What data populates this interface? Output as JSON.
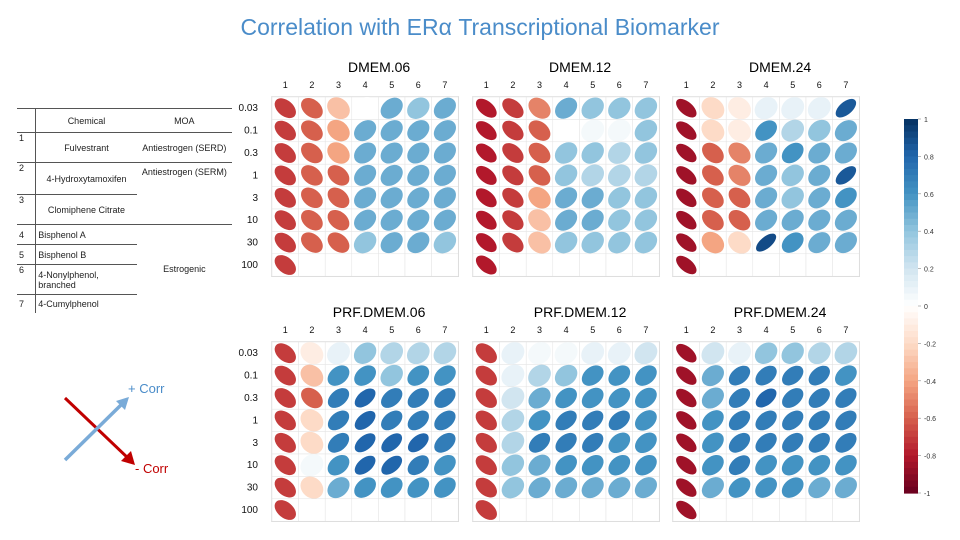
{
  "title": "Correlation with ERα Transcriptional Biomarker",
  "table": {
    "headers": {
      "chemical": "Chemical",
      "moa": "MOA"
    },
    "rows": [
      {
        "num": "1",
        "chemical": "Fulvestrant"
      },
      {
        "num": "2",
        "chemical": "4-Hydroxytamoxifen"
      },
      {
        "num": "3",
        "chemical": "Clomiphene Citrate"
      },
      {
        "num": "4",
        "chemical": "Bisphenol A"
      },
      {
        "num": "5",
        "chemical": "Bisphenol B"
      },
      {
        "num": "6",
        "chemical": "4-Nonylphenol, branched"
      },
      {
        "num": "7",
        "chemical": "4-Cumylphenol"
      }
    ],
    "moa_groups": [
      "Antiestrogen (SERD)",
      "Antiestrogen (SERM)",
      "Estrogenic"
    ]
  },
  "legend": {
    "positive": "+ Corr",
    "negative": "- Corr"
  },
  "colors": {
    "positive": "#4a8cc9",
    "negative": "#c00000",
    "title": "#4a8cc9"
  },
  "chart_data": {
    "type": "heatmap",
    "x_tick_labels": [
      "1",
      "2",
      "3",
      "4",
      "5",
      "6",
      "7"
    ],
    "y_tick_labels": [
      "0.03",
      "0.1",
      "0.3",
      "1",
      "3",
      "10",
      "30",
      "100"
    ],
    "colorbar": {
      "ticks": [
        "1",
        "0.8",
        "0.6",
        "0.4",
        "0.2",
        "0",
        "-0.2",
        "-0.4",
        "-0.6",
        "-0.8",
        "-1"
      ],
      "range": [
        -1,
        1
      ]
    },
    "panels": [
      {
        "title": "DMEM.06",
        "values": [
          [
            -0.7,
            -0.6,
            -0.3,
            0.0,
            0.5,
            0.4,
            0.5
          ],
          [
            -0.7,
            -0.6,
            -0.4,
            0.5,
            0.5,
            0.5,
            0.5
          ],
          [
            -0.7,
            -0.6,
            -0.4,
            0.5,
            0.5,
            0.5,
            0.5
          ],
          [
            -0.7,
            -0.6,
            -0.6,
            0.5,
            0.5,
            0.5,
            0.5
          ],
          [
            -0.7,
            -0.6,
            -0.6,
            0.5,
            0.5,
            0.5,
            0.5
          ],
          [
            -0.7,
            -0.6,
            -0.6,
            0.5,
            0.5,
            0.5,
            0.5
          ],
          [
            -0.7,
            -0.6,
            -0.6,
            0.4,
            0.5,
            0.5,
            0.4
          ],
          [
            -0.7,
            0,
            0,
            0,
            0,
            0,
            0
          ]
        ]
      },
      {
        "title": "DMEM.12",
        "values": [
          [
            -0.8,
            -0.7,
            -0.5,
            0.5,
            0.4,
            0.4,
            0.4
          ],
          [
            -0.8,
            -0.7,
            -0.6,
            0.0,
            0.05,
            0.05,
            0.4
          ],
          [
            -0.8,
            -0.7,
            -0.6,
            0.4,
            0.4,
            0.3,
            0.4
          ],
          [
            -0.8,
            -0.7,
            -0.6,
            0.4,
            0.3,
            0.3,
            0.3
          ],
          [
            -0.8,
            -0.7,
            -0.4,
            0.5,
            0.5,
            0.4,
            0.4
          ],
          [
            -0.8,
            -0.7,
            -0.3,
            0.5,
            0.5,
            0.4,
            0.4
          ],
          [
            -0.8,
            -0.7,
            -0.3,
            0.4,
            0.4,
            0.4,
            0.4
          ],
          [
            -0.8,
            0,
            0,
            0,
            0,
            0,
            0
          ]
        ]
      },
      {
        "title": "DMEM.24",
        "values": [
          [
            -0.85,
            -0.2,
            -0.1,
            0.1,
            0.1,
            0.1,
            0.85
          ],
          [
            -0.85,
            -0.2,
            -0.1,
            0.6,
            0.3,
            0.4,
            0.5
          ],
          [
            -0.85,
            -0.6,
            -0.5,
            0.5,
            0.6,
            0.5,
            0.5
          ],
          [
            -0.85,
            -0.6,
            -0.5,
            0.5,
            0.4,
            0.5,
            0.85
          ],
          [
            -0.85,
            -0.6,
            -0.6,
            0.5,
            0.4,
            0.5,
            0.6
          ],
          [
            -0.85,
            -0.6,
            -0.6,
            0.5,
            0.5,
            0.5,
            0.5
          ],
          [
            -0.85,
            -0.4,
            -0.2,
            0.9,
            0.6,
            0.5,
            0.5
          ],
          [
            -0.85,
            0,
            0,
            0,
            0,
            0,
            0
          ]
        ]
      },
      {
        "title": "PRF.DMEM.06",
        "values": [
          [
            -0.7,
            -0.1,
            0.1,
            0.4,
            0.3,
            0.3,
            0.3
          ],
          [
            -0.7,
            -0.3,
            0.6,
            0.6,
            0.4,
            0.6,
            0.6
          ],
          [
            -0.7,
            -0.6,
            0.7,
            0.8,
            0.7,
            0.7,
            0.7
          ],
          [
            -0.7,
            -0.2,
            0.7,
            0.8,
            0.7,
            0.7,
            0.7
          ],
          [
            -0.7,
            -0.2,
            0.7,
            0.8,
            0.8,
            0.8,
            0.7
          ],
          [
            -0.7,
            0.05,
            0.6,
            0.8,
            0.8,
            0.7,
            0.6
          ],
          [
            -0.7,
            -0.2,
            0.5,
            0.6,
            0.6,
            0.6,
            0.6
          ],
          [
            -0.7,
            0,
            0,
            0,
            0,
            0,
            0
          ]
        ]
      },
      {
        "title": "PRF.DMEM.12",
        "values": [
          [
            -0.7,
            0.1,
            0.05,
            0.05,
            0.1,
            0.1,
            0.2
          ],
          [
            -0.7,
            0.1,
            0.3,
            0.4,
            0.6,
            0.6,
            0.6
          ],
          [
            -0.7,
            0.2,
            0.5,
            0.6,
            0.6,
            0.6,
            0.6
          ],
          [
            -0.7,
            0.3,
            0.6,
            0.7,
            0.7,
            0.7,
            0.6
          ],
          [
            -0.7,
            0.3,
            0.7,
            0.7,
            0.7,
            0.6,
            0.6
          ],
          [
            -0.7,
            0.4,
            0.5,
            0.6,
            0.6,
            0.6,
            0.6
          ],
          [
            -0.7,
            0.4,
            0.5,
            0.5,
            0.5,
            0.5,
            0.5
          ],
          [
            -0.7,
            0,
            0,
            0,
            0,
            0,
            0
          ]
        ]
      },
      {
        "title": "PRF.DMEM.24",
        "values": [
          [
            -0.85,
            0.2,
            0.1,
            0.4,
            0.4,
            0.3,
            0.3
          ],
          [
            -0.85,
            0.5,
            0.7,
            0.7,
            0.7,
            0.7,
            0.6
          ],
          [
            -0.85,
            0.5,
            0.7,
            0.8,
            0.7,
            0.7,
            0.7
          ],
          [
            -0.85,
            0.6,
            0.7,
            0.7,
            0.7,
            0.7,
            0.7
          ],
          [
            -0.85,
            0.6,
            0.7,
            0.7,
            0.7,
            0.7,
            0.7
          ],
          [
            -0.85,
            0.6,
            0.7,
            0.6,
            0.6,
            0.6,
            0.6
          ],
          [
            -0.85,
            0.5,
            0.6,
            0.6,
            0.6,
            0.5,
            0.5
          ],
          [
            -0.85,
            0,
            0,
            0,
            0,
            0,
            0
          ]
        ]
      }
    ]
  }
}
